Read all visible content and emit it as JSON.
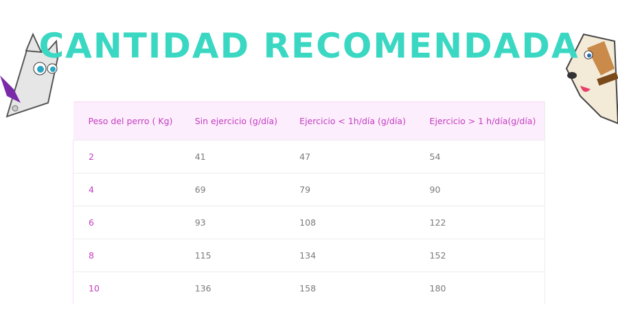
{
  "title": "CANTIDAD RECOMENDADA",
  "table": {
    "header": [
      "Peso del perro ( Kg)",
      "Sin ejercicio (g/día)",
      "Ejercicio < 1h/día (g/día)",
      "Ejercicio > 1 h/día(g/día)"
    ],
    "rows": [
      [
        "2",
        "41",
        "47",
        "54"
      ],
      [
        "4",
        "69",
        "79",
        "90"
      ],
      [
        "6",
        "93",
        "108",
        "122"
      ],
      [
        "8",
        "115",
        "134",
        "152"
      ],
      [
        "10",
        "136",
        "158",
        "180"
      ]
    ]
  }
}
